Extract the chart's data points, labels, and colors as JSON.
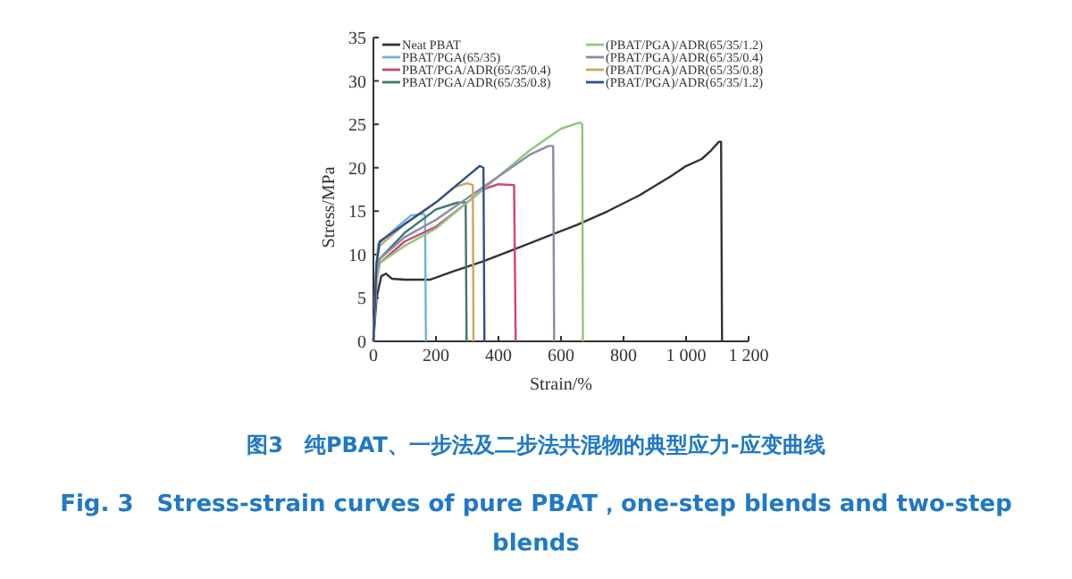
{
  "chart_data": {
    "type": "line",
    "xlabel": "Strain/%",
    "ylabel": "Stress/MPa",
    "xlim": [
      0,
      1200
    ],
    "ylim": [
      0,
      35
    ],
    "xticks": [
      0,
      200,
      400,
      600,
      800,
      {
        "value": 1000,
        "label": "1 000"
      },
      {
        "value": 1200,
        "label": "1 200"
      }
    ],
    "yticks": [
      0,
      5,
      10,
      15,
      20,
      25,
      30,
      35
    ],
    "legend": "top left",
    "series": [
      {
        "name": "Neat PBAT",
        "color": "#333333",
        "x": [
          0,
          10,
          25,
          40,
          60,
          100,
          180,
          250,
          350,
          450,
          550,
          650,
          750,
          850,
          950,
          1000,
          1050,
          1080,
          1105,
          1112,
          1115
        ],
        "values": [
          0,
          5,
          7.5,
          7.8,
          7.2,
          7.1,
          7.1,
          8,
          9.2,
          10.6,
          12,
          13.4,
          15,
          16.8,
          19,
          20.2,
          21,
          22,
          23,
          23,
          0
        ]
      },
      {
        "name": "PBAT/PGA(65/35)",
        "color": "#6fb3d6",
        "x": [
          0,
          8,
          15,
          40,
          80,
          120,
          160,
          165,
          168
        ],
        "values": [
          0,
          8,
          11.2,
          12,
          13.3,
          14.5,
          14.7,
          14.5,
          0
        ]
      },
      {
        "name": "PBAT/PGA/ADR(65/35/0.4)",
        "color": "#d0427a",
        "x": [
          0,
          10,
          20,
          100,
          200,
          300,
          350,
          400,
          450,
          455
        ],
        "values": [
          0,
          7,
          9,
          11.5,
          13.2,
          16,
          17.5,
          18.1,
          18,
          0
        ]
      },
      {
        "name": "PBAT/PGA/ADR(65/35/0.8)",
        "color": "#3a7a6a",
        "x": [
          0,
          10,
          20,
          100,
          200,
          270,
          295,
          298
        ],
        "values": [
          0,
          8,
          9.5,
          12.5,
          15.2,
          16,
          16,
          0
        ]
      },
      {
        "name": "(PBAT/PGA)/ADR(65/35/1.2)",
        "color": "#8cc97a",
        "x": [
          0,
          10,
          20,
          100,
          200,
          300,
          400,
          500,
          600,
          660,
          668,
          670
        ],
        "values": [
          0,
          7,
          9,
          11,
          13,
          16,
          19,
          22,
          24.5,
          25.2,
          25,
          0
        ]
      },
      {
        "name": "(PBAT/PGA)/ADR(65/35/0.4)",
        "color": "#8a8aa8",
        "x": [
          0,
          10,
          20,
          100,
          200,
          300,
          400,
          500,
          560,
          575,
          578
        ],
        "values": [
          0,
          8,
          9.5,
          12,
          14,
          16.5,
          19,
          21.5,
          22.5,
          22.5,
          0
        ]
      },
      {
        "name": "(PBAT/PGA)/ADR(65/35/0.8)",
        "color": "#c8a860",
        "x": [
          0,
          10,
          20,
          100,
          200,
          260,
          300,
          318,
          320
        ],
        "values": [
          0,
          9,
          11,
          13.5,
          16,
          17.8,
          18.2,
          18,
          0
        ]
      },
      {
        "name": "(PBAT/PGA)/ADR(65/35/1.2)",
        "color": "#2f4f8f",
        "x": [
          0,
          10,
          20,
          100,
          200,
          300,
          340,
          352,
          355
        ],
        "values": [
          0,
          9,
          11.5,
          13.5,
          16,
          19,
          20.2,
          20,
          0
        ]
      }
    ],
    "annotations": [
      "图3　纯PBAT、一步法及二步法共混物的典型应力-应变曲线",
      "Fig. 3　Stress-strain curves of pure PBAT，one-step blends and two-step blends"
    ]
  }
}
